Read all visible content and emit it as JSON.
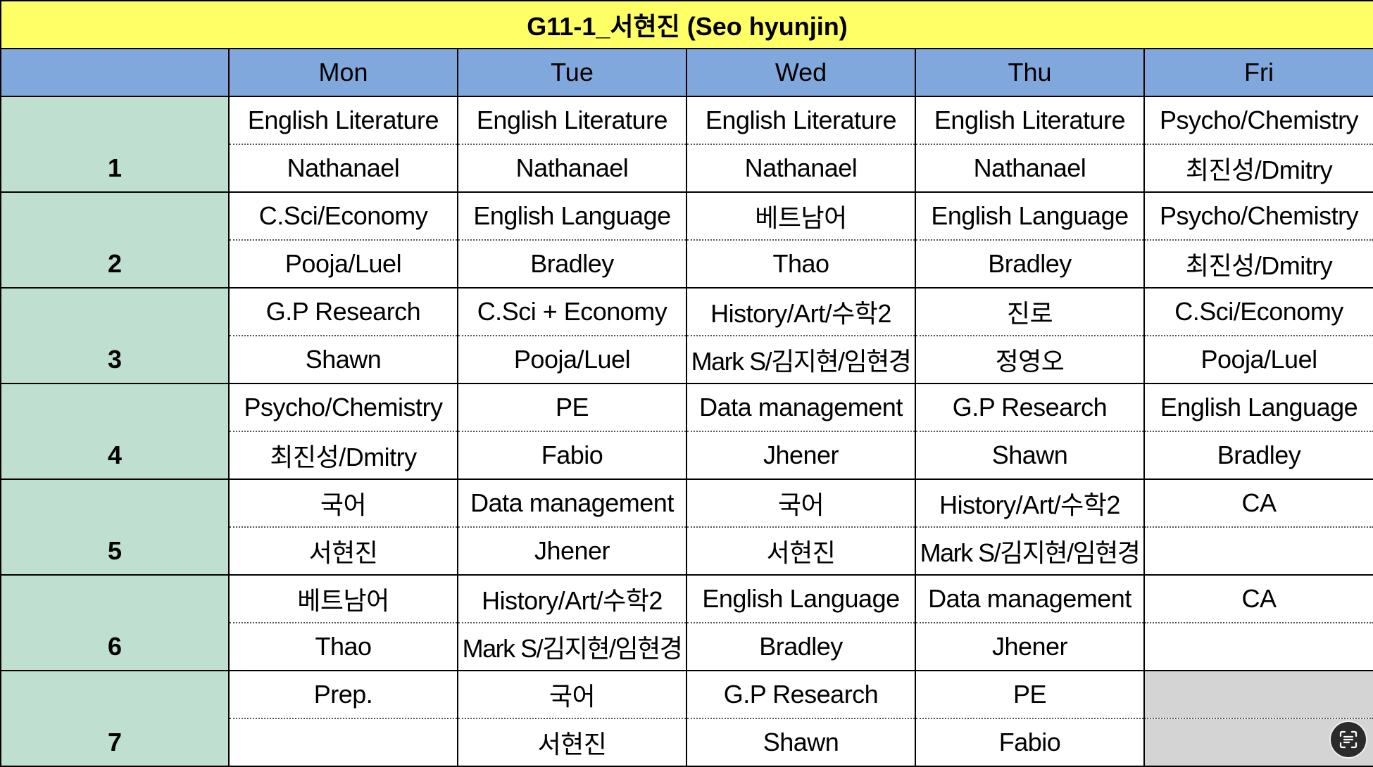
{
  "title": "G11-1_서현진 (Seo hyunjin)",
  "days": [
    "Mon",
    "Tue",
    "Wed",
    "Thu",
    "Fri"
  ],
  "periods": [
    {
      "number": "1",
      "cells": [
        {
          "subject": "English Literature",
          "teacher": "Nathanael"
        },
        {
          "subject": "English Literature",
          "teacher": "Nathanael"
        },
        {
          "subject": "English Literature",
          "teacher": "Nathanael"
        },
        {
          "subject": "English Literature",
          "teacher": "Nathanael"
        },
        {
          "subject": "Psycho/Chemistry",
          "teacher": "최진성/Dmitry"
        }
      ]
    },
    {
      "number": "2",
      "cells": [
        {
          "subject": "C.Sci/Economy",
          "teacher": "Pooja/Luel"
        },
        {
          "subject": "English Language",
          "teacher": "Bradley"
        },
        {
          "subject": "베트남어",
          "teacher": "Thao"
        },
        {
          "subject": "English Language",
          "teacher": "Bradley"
        },
        {
          "subject": "Psycho/Chemistry",
          "teacher": "최진성/Dmitry"
        }
      ]
    },
    {
      "number": "3",
      "cells": [
        {
          "subject": "G.P Research",
          "teacher": "Shawn"
        },
        {
          "subject": "C.Sci + Economy",
          "teacher": "Pooja/Luel"
        },
        {
          "subject": "History/Art/수학2",
          "teacher": "Mark S/김지현/임현경"
        },
        {
          "subject": "진로",
          "teacher": "정영오"
        },
        {
          "subject": "C.Sci/Economy",
          "teacher": "Pooja/Luel"
        }
      ]
    },
    {
      "number": "4",
      "cells": [
        {
          "subject": "Psycho/Chemistry",
          "teacher": "최진성/Dmitry"
        },
        {
          "subject": "PE",
          "teacher": "Fabio"
        },
        {
          "subject": "Data management",
          "teacher": "Jhener"
        },
        {
          "subject": "G.P Research",
          "teacher": "Shawn"
        },
        {
          "subject": "English Language",
          "teacher": "Bradley"
        }
      ]
    },
    {
      "number": "5",
      "cells": [
        {
          "subject": "국어",
          "teacher": "서현진"
        },
        {
          "subject": "Data management",
          "teacher": "Jhener"
        },
        {
          "subject": "국어",
          "teacher": "서현진"
        },
        {
          "subject": "History/Art/수학2",
          "teacher": "Mark S/김지현/임현경"
        },
        {
          "subject": "CA",
          "teacher": ""
        }
      ]
    },
    {
      "number": "6",
      "cells": [
        {
          "subject": "베트남어",
          "teacher": "Thao"
        },
        {
          "subject": "History/Art/수학2",
          "teacher": "Mark S/김지현/임현경"
        },
        {
          "subject": "English Language",
          "teacher": "Bradley"
        },
        {
          "subject": "Data management",
          "teacher": "Jhener"
        },
        {
          "subject": "CA",
          "teacher": ""
        }
      ]
    },
    {
      "number": "7",
      "cells": [
        {
          "subject": "Prep.",
          "teacher": ""
        },
        {
          "subject": "국어",
          "teacher": "서현진"
        },
        {
          "subject": "G.P Research",
          "teacher": "Shawn"
        },
        {
          "subject": "PE",
          "teacher": "Fabio"
        },
        {
          "subject": "",
          "teacher": "",
          "shaded": true
        }
      ]
    }
  ],
  "colors": {
    "title_bg": "#ffff66",
    "header_bg": "#80a8dc",
    "period_bg": "#bfe0d0",
    "empty_cell_bg": "#d4d4d4"
  },
  "floating_button_icon": "scan-text-icon"
}
